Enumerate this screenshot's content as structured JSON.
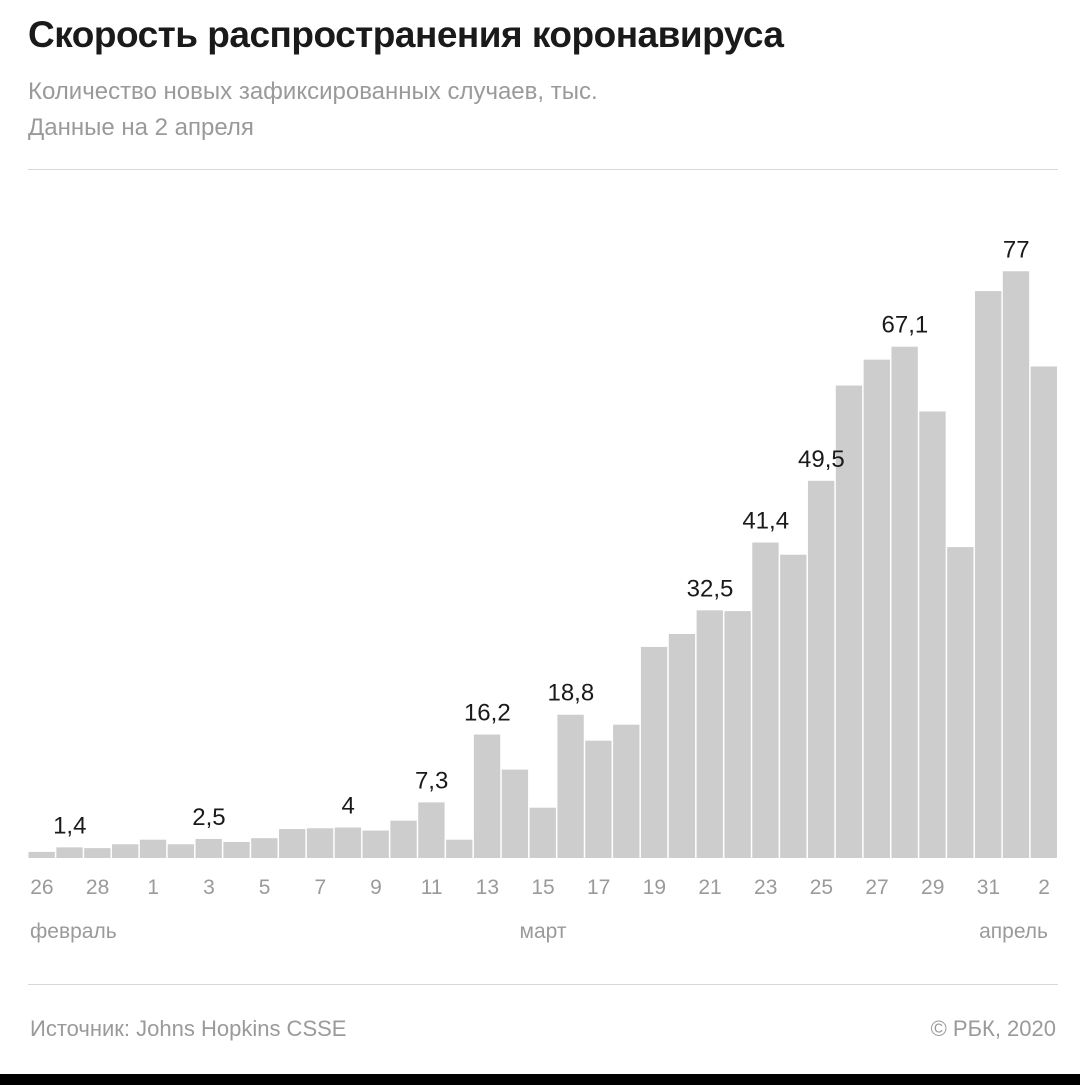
{
  "title": "Скорость распространения коронавируса",
  "subtitle_line1": "Количество новых зафиксированных случаев, тыс.",
  "subtitle_line2": "Данные на 2 апреля",
  "footer": {
    "source": "Источник: Johns Hopkins CSSE",
    "copyright": "© РБК, 2020"
  },
  "colors": {
    "bar": "#cdcdcd",
    "label": "#1a1a1a",
    "tick": "#9a9a9a"
  },
  "chart_data": {
    "type": "bar",
    "title": "Скорость распространения коронавируса",
    "ylabel": "Количество новых зафиксированных случаев, тыс.",
    "ylim": [
      0,
      80
    ],
    "categories": [
      "26",
      "27",
      "28",
      "29",
      "1",
      "2",
      "3",
      "4",
      "5",
      "6",
      "7",
      "8",
      "9",
      "10",
      "11",
      "12",
      "13",
      "14",
      "15",
      "16",
      "17",
      "18",
      "19",
      "20",
      "21",
      "22",
      "23",
      "24",
      "25",
      "26",
      "27",
      "28",
      "29",
      "30",
      "31",
      "1",
      "2"
    ],
    "values": [
      0.8,
      1.4,
      1.3,
      1.8,
      2.4,
      1.8,
      2.5,
      2.1,
      2.6,
      3.8,
      3.9,
      4.0,
      3.6,
      4.9,
      7.3,
      2.4,
      16.2,
      11.6,
      6.6,
      18.8,
      15.4,
      17.5,
      27.7,
      29.4,
      32.5,
      32.4,
      41.4,
      39.8,
      49.5,
      62.0,
      65.4,
      67.1,
      58.6,
      40.8,
      74.4,
      77.0,
      64.5
    ],
    "data_labels": [
      {
        "index": 1,
        "text": "1,4"
      },
      {
        "index": 6,
        "text": "2,5"
      },
      {
        "index": 11,
        "text": "4"
      },
      {
        "index": 14,
        "text": "7,3"
      },
      {
        "index": 16,
        "text": "16,2"
      },
      {
        "index": 19,
        "text": "18,8"
      },
      {
        "index": 24,
        "text": "32,5"
      },
      {
        "index": 26,
        "text": "41,4"
      },
      {
        "index": 28,
        "text": "49,5"
      },
      {
        "index": 31,
        "text": "67,1"
      },
      {
        "index": 35,
        "text": "77"
      }
    ],
    "tick_labels": [
      {
        "index": 0,
        "text": "26"
      },
      {
        "index": 2,
        "text": "28"
      },
      {
        "index": 4,
        "text": "1"
      },
      {
        "index": 6,
        "text": "3"
      },
      {
        "index": 8,
        "text": "5"
      },
      {
        "index": 10,
        "text": "7"
      },
      {
        "index": 12,
        "text": "9"
      },
      {
        "index": 14,
        "text": "11"
      },
      {
        "index": 16,
        "text": "13"
      },
      {
        "index": 18,
        "text": "15"
      },
      {
        "index": 20,
        "text": "17"
      },
      {
        "index": 22,
        "text": "19"
      },
      {
        "index": 24,
        "text": "21"
      },
      {
        "index": 26,
        "text": "23"
      },
      {
        "index": 28,
        "text": "25"
      },
      {
        "index": 30,
        "text": "27"
      },
      {
        "index": 32,
        "text": "29"
      },
      {
        "index": 34,
        "text": "31"
      },
      {
        "index": 36,
        "text": "2"
      }
    ],
    "month_labels": [
      {
        "index": 0,
        "text": "февраль",
        "align": "start"
      },
      {
        "index": 18,
        "text": "март",
        "align": "middle"
      },
      {
        "index": 36,
        "text": "апрель",
        "align": "end"
      }
    ],
    "grid": false,
    "legend": "none"
  }
}
